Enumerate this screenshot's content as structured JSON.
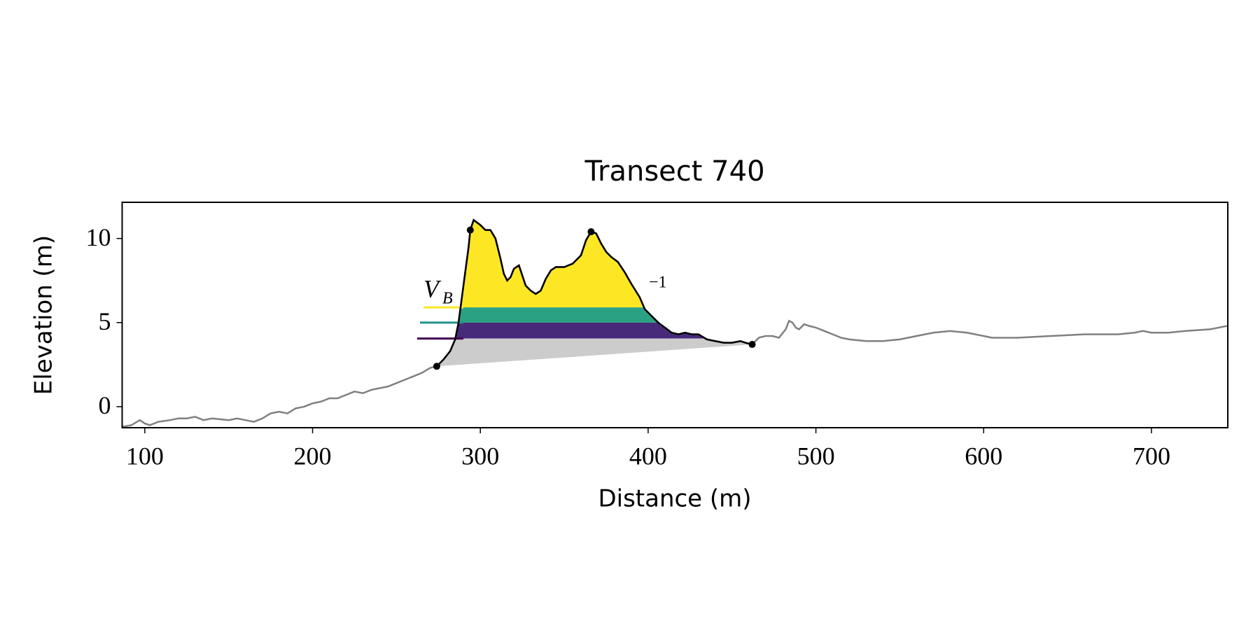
{
  "chart_data": {
    "type": "line",
    "title": "Transect 740",
    "x_label": "Distance (m)",
    "y_label": "Elevation (m)",
    "xlim": [
      86.5,
      745.5
    ],
    "ylim": [
      -1.25,
      12.15
    ],
    "xticks": [
      100,
      200,
      300,
      400,
      500,
      600,
      700
    ],
    "yticks": [
      0,
      5,
      10
    ],
    "x": [
      86,
      92,
      97,
      100,
      103,
      108,
      115,
      120,
      125,
      130,
      135,
      140,
      150,
      155,
      160,
      165,
      170,
      175,
      180,
      185,
      190,
      195,
      200,
      205,
      210,
      215,
      220,
      225,
      230,
      235,
      240,
      245,
      250,
      255,
      260,
      265,
      270,
      274,
      278,
      282,
      285,
      287,
      289,
      291,
      293,
      294,
      296,
      300,
      303,
      306,
      309,
      312,
      314,
      316,
      318,
      320,
      323,
      325,
      327,
      330,
      333,
      336,
      339,
      342,
      345,
      350,
      355,
      360,
      363,
      366,
      369,
      372,
      375,
      378,
      382,
      386,
      390,
      395,
      398,
      402,
      406,
      410,
      414,
      418,
      422,
      426,
      430,
      435,
      440,
      445,
      450,
      455,
      458,
      462,
      466,
      470,
      474,
      478,
      482,
      484,
      486,
      488,
      490,
      493,
      496,
      500,
      505,
      510,
      515,
      520,
      530,
      540,
      550,
      560,
      570,
      580,
      590,
      600,
      605,
      620,
      640,
      660,
      680,
      690,
      695,
      700,
      710,
      720,
      735,
      745
    ],
    "series": [
      {
        "color": "#808080",
        "values": [
          -1.2,
          -1.1,
          -0.8,
          -1.0,
          -1.1,
          -0.9,
          -0.8,
          -0.7,
          -0.7,
          -0.6,
          -0.8,
          -0.7,
          -0.8,
          -0.7,
          -0.8,
          -0.9,
          -0.7,
          -0.4,
          -0.3,
          -0.4,
          -0.1,
          0.0,
          0.2,
          0.3,
          0.5,
          0.5,
          0.7,
          0.9,
          0.8,
          1.0,
          1.1,
          1.2,
          1.4,
          1.6,
          1.8,
          2.0,
          2.3,
          2.4,
          2.8,
          3.3,
          4.0,
          5.0,
          6.5,
          8.0,
          9.5,
          10.5,
          11.1,
          10.8,
          10.5,
          10.5,
          10.0,
          8.8,
          7.9,
          7.5,
          7.7,
          8.2,
          8.4,
          7.8,
          7.2,
          6.9,
          6.7,
          6.9,
          7.6,
          8.1,
          8.3,
          8.3,
          8.5,
          9.0,
          9.9,
          10.4,
          10.3,
          9.7,
          9.2,
          8.9,
          8.6,
          8.0,
          7.3,
          6.5,
          5.8,
          5.4,
          5.0,
          4.7,
          4.4,
          4.3,
          4.4,
          4.3,
          4.3,
          4.0,
          3.9,
          3.8,
          3.8,
          3.9,
          3.8,
          3.7,
          4.1,
          4.2,
          4.2,
          4.1,
          4.6,
          5.1,
          5.0,
          4.7,
          4.6,
          4.9,
          4.8,
          4.7,
          4.5,
          4.3,
          4.1,
          4.0,
          3.9,
          3.9,
          4.0,
          4.2,
          4.4,
          4.5,
          4.4,
          4.2,
          4.1,
          4.1,
          4.2,
          4.3,
          4.3,
          4.4,
          4.5,
          4.4,
          4.4,
          4.5,
          4.6,
          4.8
        ]
      }
    ],
    "dune_color": "#000000",
    "base_color": "#cccccc",
    "points": {
      "x": [
        274,
        294,
        366,
        462
      ],
      "y": [
        2.4,
        10.5,
        10.4,
        3.7
      ]
    },
    "levels": {
      "values": [
        5.9,
        5.0,
        4.05
      ],
      "colors": [
        "#fde725",
        "#21918c",
        "#440154"
      ],
      "band_colors": [
        "#fde725",
        "#2ba184",
        "#472a7a"
      ]
    },
    "annotation_texts": [
      "V",
      "B",
      "−1"
    ]
  }
}
